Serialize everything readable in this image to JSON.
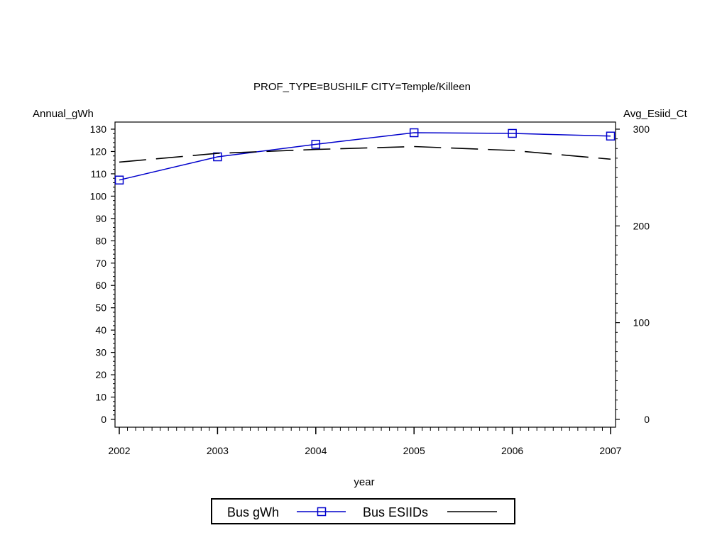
{
  "chart_data": {
    "type": "line",
    "title": "PROF_TYPE=BUSHILF CITY=Temple/Killeen",
    "xlabel": "year",
    "ylabel_left": "Annual_gWh",
    "ylabel_right": "Avg_Esiid_Ct",
    "x": [
      "2002",
      "2003",
      "2004",
      "2005",
      "2006",
      "2007"
    ],
    "ylim_left": [
      0,
      130
    ],
    "yticks_left": [
      "0",
      "10",
      "20",
      "30",
      "40",
      "50",
      "60",
      "70",
      "80",
      "90",
      "100",
      "110",
      "120",
      "130"
    ],
    "ylim_right": [
      0,
      300
    ],
    "yticks_right": [
      "0",
      "100",
      "200",
      "300"
    ],
    "grid": false,
    "legend_position": "bottom",
    "series": [
      {
        "name": "Bus gWh",
        "axis": "left",
        "values": [
          107.2,
          117.6,
          123.2,
          128.4,
          128.1,
          126.9
        ],
        "color": "#0000cc",
        "marker": "square",
        "line": "solid"
      },
      {
        "name": "Bus ESIIDs",
        "axis": "right",
        "values": [
          266,
          275,
          279,
          282,
          278,
          269
        ],
        "color": "#000000",
        "marker": "none",
        "line": "dashed"
      }
    ]
  }
}
